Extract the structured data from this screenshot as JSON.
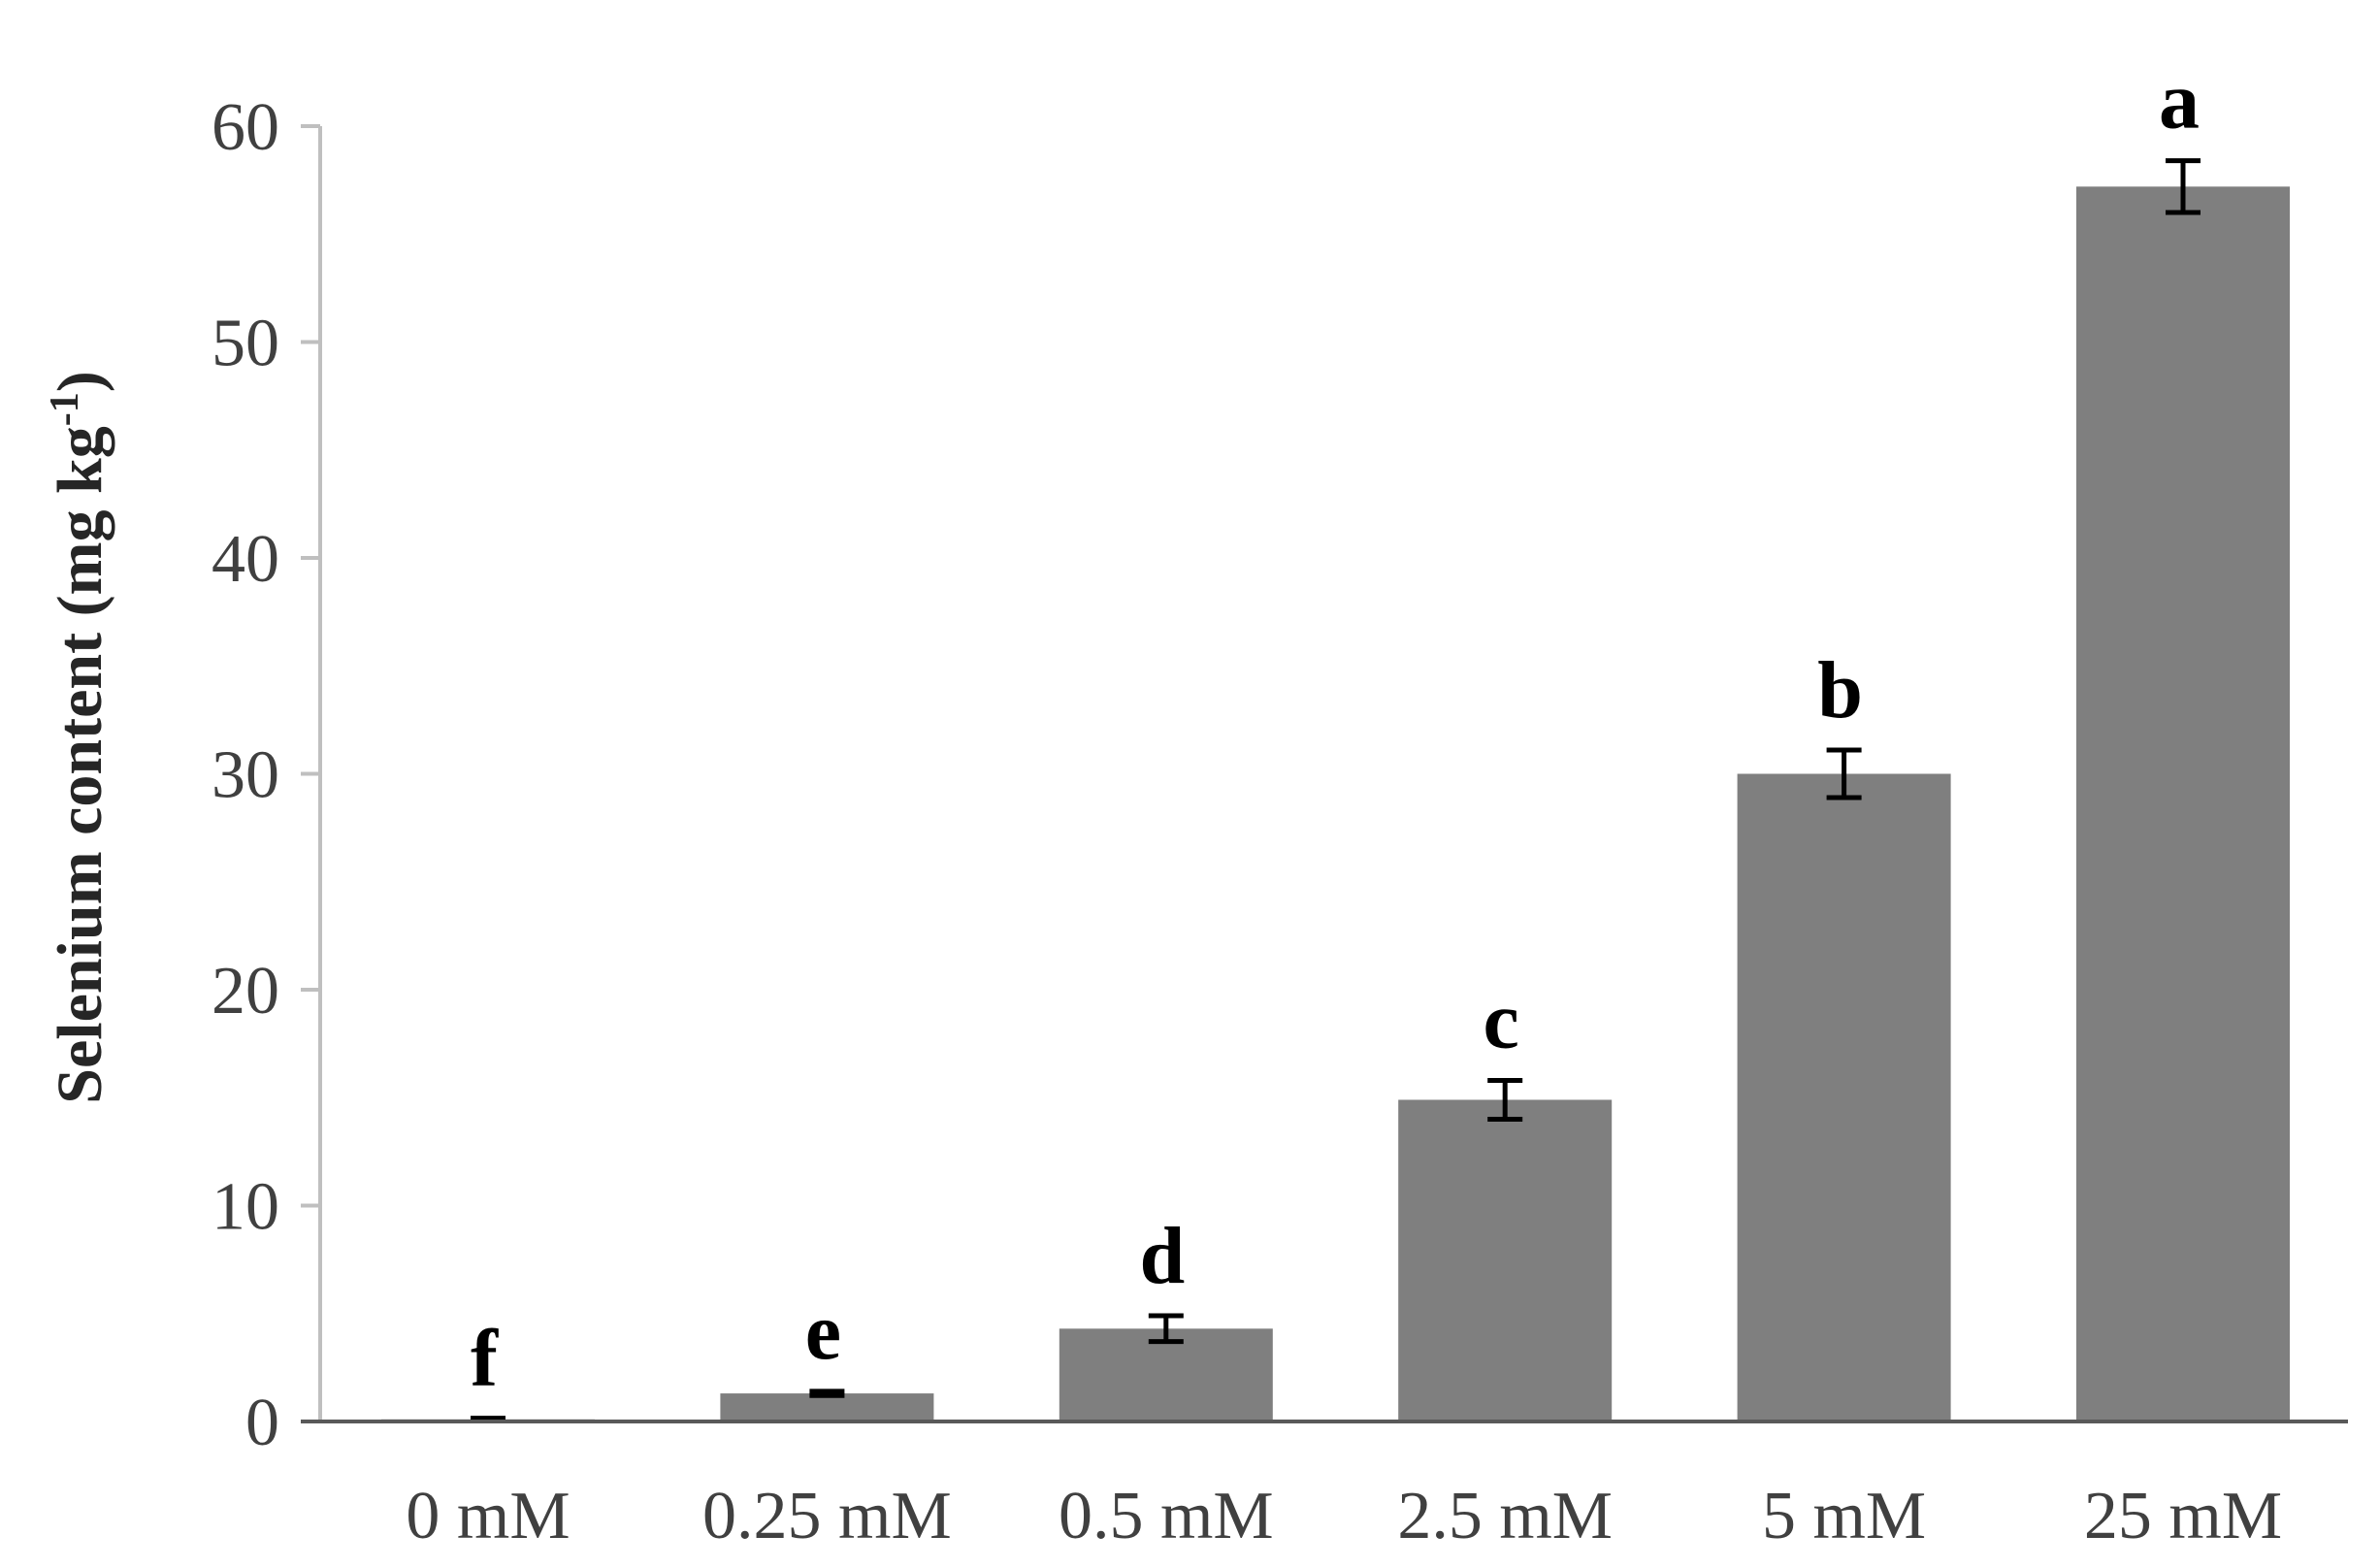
{
  "chart_data": {
    "type": "bar",
    "title": "",
    "xlabel": "",
    "ylabel": {
      "main": "Selenium content (mg kg",
      "sup": "-1",
      "close": ")"
    },
    "ylim": [
      0,
      60
    ],
    "yticks": [
      0,
      10,
      20,
      30,
      40,
      50,
      60
    ],
    "grid": false,
    "legend": "none",
    "categories": [
      "0 mM",
      "0.25 mM",
      "0.5 mM",
      "2.5 mM",
      "5 mM",
      "25 mM"
    ],
    "series": [
      {
        "values": [
          0.1,
          1.3,
          4.3,
          14.9,
          30.0,
          57.2
        ],
        "errors": [
          0.05,
          0.1,
          0.6,
          0.9,
          1.1,
          1.2
        ],
        "color": "#7f7f7f"
      }
    ],
    "annotations": [
      "f",
      "e",
      "d",
      "c",
      "b",
      "a"
    ]
  },
  "colors": {
    "bar": "#7f7f7f",
    "axis": "#595959",
    "error_bar": "#000000"
  }
}
